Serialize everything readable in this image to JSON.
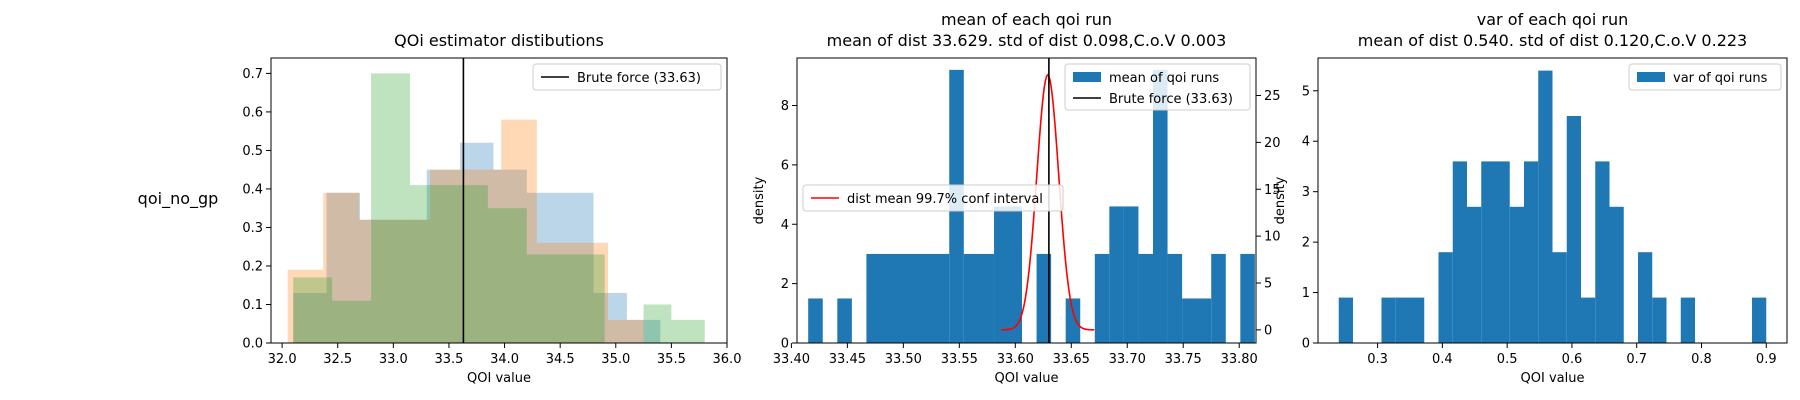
{
  "row_label": "qoi_no_gp",
  "chart_data": [
    {
      "type": "bar",
      "title": "QOi estimator distibutions",
      "subtitle": "",
      "xlabel": "QOI value",
      "ylabel": "",
      "xlim": [
        31.9,
        36.0
      ],
      "ylim": [
        0,
        0.74
      ],
      "xticks": [
        32.0,
        32.5,
        33.0,
        33.5,
        34.0,
        34.5,
        35.0,
        35.5,
        36.0
      ],
      "xtick_labels": [
        "32.0",
        "32.5",
        "33.0",
        "33.5",
        "34.0",
        "34.5",
        "35.0",
        "35.5",
        "36.0"
      ],
      "yticks": [
        0.0,
        0.1,
        0.2,
        0.3,
        0.4,
        0.5,
        0.6,
        0.7
      ],
      "ytick_labels": [
        "0.0",
        "0.1",
        "0.2",
        "0.3",
        "0.4",
        "0.5",
        "0.6",
        "0.7"
      ],
      "grid": false,
      "legend_position": "top-right",
      "vline": {
        "x": 33.63,
        "label": "Brute force (33.63)",
        "color": "#000000"
      },
      "series": [
        {
          "color": "#1f77b4",
          "alpha": 0.3,
          "bins": [
            [
              32.1,
              32.4,
              0.13
            ],
            [
              32.4,
              32.7,
              0.39
            ],
            [
              32.7,
              33.0,
              0.32
            ],
            [
              33.0,
              33.3,
              0.32
            ],
            [
              33.3,
              33.6,
              0.45
            ],
            [
              33.6,
              33.9,
              0.52
            ],
            [
              33.9,
              34.2,
              0.45
            ],
            [
              34.2,
              34.5,
              0.39
            ],
            [
              34.5,
              34.8,
              0.39
            ],
            [
              34.8,
              35.1,
              0.13
            ],
            [
              35.1,
              35.4,
              0.06
            ]
          ]
        },
        {
          "color": "#ff7f0e",
          "alpha": 0.3,
          "bins": [
            [
              32.05,
              32.37,
              0.19
            ],
            [
              32.37,
              32.69,
              0.39
            ],
            [
              32.69,
              33.01,
              0.32
            ],
            [
              33.01,
              33.33,
              0.32
            ],
            [
              33.33,
              33.65,
              0.45
            ],
            [
              33.65,
              33.97,
              0.45
            ],
            [
              33.97,
              34.29,
              0.58
            ],
            [
              34.29,
              34.61,
              0.26
            ],
            [
              34.61,
              34.93,
              0.26
            ],
            [
              34.93,
              35.25,
              0.06
            ]
          ]
        },
        {
          "color": "#2ca02c",
          "alpha": 0.3,
          "bins": [
            [
              32.1,
              32.45,
              0.17
            ],
            [
              32.45,
              32.8,
              0.11
            ],
            [
              32.8,
              33.15,
              0.7
            ],
            [
              33.15,
              33.5,
              0.41
            ],
            [
              33.5,
              33.85,
              0.41
            ],
            [
              33.85,
              34.2,
              0.35
            ],
            [
              34.2,
              34.55,
              0.23
            ],
            [
              34.55,
              34.9,
              0.23
            ],
            [
              34.9,
              35.25,
              0.0
            ],
            [
              35.25,
              35.5,
              0.1
            ],
            [
              35.5,
              35.8,
              0.06
            ]
          ]
        }
      ]
    },
    {
      "type": "bar",
      "title": "mean of each qoi run",
      "subtitle": "mean of dist 33.629. std of dist 0.098,C.o.V 0.003",
      "xlabel": "QOI value",
      "ylabel": "density",
      "xlim": [
        33.405,
        33.815
      ],
      "ylim": [
        0,
        9.6
      ],
      "y2lim": [
        -1.4,
        29.0
      ],
      "xticks": [
        33.4,
        33.45,
        33.5,
        33.55,
        33.6,
        33.65,
        33.7,
        33.75,
        33.8
      ],
      "xtick_labels": [
        "33.40",
        "33.45",
        "33.50",
        "33.55",
        "33.60",
        "33.65",
        "33.70",
        "33.75",
        "33.80"
      ],
      "yticks": [
        0,
        2,
        4,
        6,
        8
      ],
      "ytick_labels": [
        "0",
        "2",
        "4",
        "6",
        "8"
      ],
      "y2ticks": [
        0,
        5,
        10,
        15,
        20,
        25
      ],
      "y2tick_labels": [
        "0",
        "5",
        "10",
        "15",
        "20",
        "25"
      ],
      "grid": false,
      "legend_position": "top-right",
      "legend2_position": "center-left",
      "bar_color": "#1f77b4",
      "bar_legend": "mean of qoi runs",
      "bins": [
        [
          33.415,
          33.428,
          1.5
        ],
        [
          33.428,
          33.441,
          0
        ],
        [
          33.441,
          33.454,
          1.5
        ],
        [
          33.454,
          33.467,
          0
        ],
        [
          33.467,
          33.541,
          3.0
        ],
        [
          33.541,
          33.554,
          9.2
        ],
        [
          33.554,
          33.581,
          3.0
        ],
        [
          33.581,
          33.606,
          4.6
        ],
        [
          33.606,
          33.619,
          0
        ],
        [
          33.619,
          33.632,
          3.0
        ],
        [
          33.632,
          33.645,
          0
        ],
        [
          33.645,
          33.658,
          1.5
        ],
        [
          33.658,
          33.671,
          0
        ],
        [
          33.671,
          33.684,
          3.0
        ],
        [
          33.684,
          33.697,
          4.6
        ],
        [
          33.697,
          33.71,
          4.6
        ],
        [
          33.71,
          33.723,
          3.0
        ],
        [
          33.723,
          33.736,
          9.2
        ],
        [
          33.736,
          33.749,
          3.0
        ],
        [
          33.749,
          33.775,
          1.5
        ],
        [
          33.775,
          33.788,
          3.0
        ],
        [
          33.788,
          33.801,
          0
        ],
        [
          33.801,
          33.814,
          3.0
        ]
      ],
      "vline": {
        "x": 33.63,
        "label": "Brute force (33.63)",
        "color": "#000000"
      },
      "curve": {
        "label": "dist mean 99.7% conf interval",
        "color": "#ff0000",
        "mean": 33.629,
        "sd": 0.0098,
        "peak": 27.2,
        "x_from": 33.5875,
        "x_to": 33.6705
      }
    },
    {
      "type": "bar",
      "title": "var of each qoi run",
      "subtitle": "mean of dist 0.540. std of dist 0.120,C.o.V 0.223",
      "xlabel": "QOI value",
      "ylabel": "density",
      "xlim": [
        0.208,
        0.932
      ],
      "ylim": [
        0,
        5.65
      ],
      "xticks": [
        0.3,
        0.4,
        0.5,
        0.6,
        0.7,
        0.8,
        0.9
      ],
      "xtick_labels": [
        "0.3",
        "0.4",
        "0.5",
        "0.6",
        "0.7",
        "0.8",
        "0.9"
      ],
      "yticks": [
        0,
        1,
        2,
        3,
        4,
        5
      ],
      "ytick_labels": [
        "0",
        "1",
        "2",
        "3",
        "4",
        "5"
      ],
      "grid": false,
      "legend_position": "top-right",
      "bar_color": "#1f77b4",
      "bar_legend": "var of qoi runs",
      "bins": [
        [
          0.24,
          0.262,
          0.9
        ],
        [
          0.262,
          0.284,
          0
        ],
        [
          0.284,
          0.306,
          0
        ],
        [
          0.306,
          0.328,
          0.9
        ],
        [
          0.328,
          0.35,
          0.9
        ],
        [
          0.35,
          0.372,
          0.9
        ],
        [
          0.372,
          0.394,
          0
        ],
        [
          0.394,
          0.416,
          1.8
        ],
        [
          0.416,
          0.438,
          3.6
        ],
        [
          0.438,
          0.46,
          2.7
        ],
        [
          0.46,
          0.482,
          3.6
        ],
        [
          0.482,
          0.504,
          3.6
        ],
        [
          0.504,
          0.526,
          2.7
        ],
        [
          0.526,
          0.548,
          3.6
        ],
        [
          0.548,
          0.57,
          5.4
        ],
        [
          0.57,
          0.592,
          1.8
        ],
        [
          0.592,
          0.614,
          4.5
        ],
        [
          0.614,
          0.636,
          0.9
        ],
        [
          0.636,
          0.658,
          3.6
        ],
        [
          0.658,
          0.68,
          2.7
        ],
        [
          0.68,
          0.702,
          0
        ],
        [
          0.702,
          0.724,
          1.8
        ],
        [
          0.724,
          0.746,
          0.9
        ],
        [
          0.746,
          0.768,
          0
        ],
        [
          0.768,
          0.79,
          0.9
        ],
        [
          0.79,
          0.812,
          0
        ],
        [
          0.812,
          0.834,
          0
        ],
        [
          0.834,
          0.856,
          0
        ],
        [
          0.856,
          0.878,
          0
        ],
        [
          0.878,
          0.9,
          0.9
        ]
      ]
    }
  ]
}
